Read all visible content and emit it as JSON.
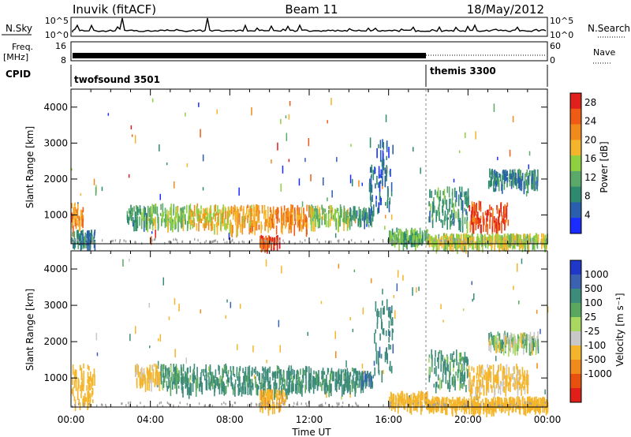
{
  "header": {
    "station": "Inuvik (fitACF)",
    "beam": "Beam 11",
    "date": "18/May/2012"
  },
  "strips": {
    "nsky": {
      "label": "N.Sky",
      "ticks": [
        "10^5",
        "10^0"
      ],
      "right_label": "N.Search",
      "right_ticks": [
        "10^5",
        "10^0"
      ]
    },
    "freq": {
      "label_line1": "Freq.",
      "label_line2": "[MHz]",
      "ticks": [
        "16",
        "8"
      ],
      "right_label": "Nave",
      "right_ticks": [
        "60",
        "0"
      ]
    },
    "cpid": {
      "label": "CPID",
      "modes": [
        "twofsound 3501",
        "themis 3300"
      ]
    }
  },
  "time_axis": {
    "label": "Time UT",
    "ticks": [
      "00:00",
      "04:00",
      "08:00",
      "12:00",
      "16:00",
      "20:00",
      "00:00"
    ]
  },
  "colors": {
    "power_scale": [
      "#1a2cff",
      "#2a5fae",
      "#2e8a6e",
      "#5aa86a",
      "#8fd040",
      "#f5b52a",
      "#f08a1a",
      "#ef5a15",
      "#e0201a"
    ],
    "velocity_scale": [
      "#2038c8",
      "#3a62b0",
      "#3d8b7a",
      "#5aa860",
      "#a8d860",
      "#c8c8c8",
      "#f5b52a",
      "#f08a1a",
      "#e85010",
      "#e02018"
    ],
    "ground_scatter": "#a0a0a0"
  },
  "chart_data": [
    {
      "type": "heatmap",
      "name": "power",
      "ylabel": "Slant Range [km]",
      "xlabel": "",
      "yticks": [
        "1000",
        "2000",
        "3000",
        "4000"
      ],
      "ylim": [
        200,
        4500
      ],
      "xlim_hours": [
        0,
        24
      ],
      "colorbar": {
        "label": "Power [dB]",
        "ticks": [
          "4",
          "8",
          "12",
          "16",
          "20",
          "24",
          "28"
        ],
        "range": [
          0,
          30
        ]
      },
      "patches": [
        {
          "t0": 0.0,
          "t1": 0.6,
          "r0": 700,
          "r1": 1350,
          "value": 22
        },
        {
          "t0": 0.0,
          "t1": 1.2,
          "r0": 250,
          "r1": 600,
          "value": 8
        },
        {
          "t0": 2.8,
          "t1": 3.8,
          "r0": 850,
          "r1": 1300,
          "value": 10
        },
        {
          "t0": 3.8,
          "t1": 6.0,
          "r0": 800,
          "r1": 1350,
          "value": 14
        },
        {
          "t0": 6.0,
          "t1": 8.0,
          "r0": 750,
          "r1": 1300,
          "value": 18
        },
        {
          "t0": 8.0,
          "t1": 10.0,
          "r0": 700,
          "r1": 1300,
          "value": 20
        },
        {
          "t0": 10.0,
          "t1": 12.0,
          "r0": 700,
          "r1": 1300,
          "value": 22
        },
        {
          "t0": 12.0,
          "t1": 14.0,
          "r0": 800,
          "r1": 1300,
          "value": 14
        },
        {
          "t0": 14.0,
          "t1": 15.2,
          "r0": 900,
          "r1": 1250,
          "value": 9
        },
        {
          "t0": 9.5,
          "t1": 10.5,
          "r0": 250,
          "r1": 450,
          "value": 26
        },
        {
          "t0": 15.0,
          "t1": 16.2,
          "r0": 1200,
          "r1": 3200,
          "value": 6
        },
        {
          "t0": 16.0,
          "t1": 18.0,
          "r0": 300,
          "r1": 650,
          "value": 12
        },
        {
          "t0": 18.0,
          "t1": 20.0,
          "r0": 800,
          "r1": 1800,
          "value": 10
        },
        {
          "t0": 20.0,
          "t1": 22.0,
          "r0": 700,
          "r1": 1400,
          "value": 26
        },
        {
          "t0": 21.0,
          "t1": 23.5,
          "r0": 1900,
          "r1": 2300,
          "value": 8
        },
        {
          "t0": 18.0,
          "t1": 24.0,
          "r0": 250,
          "r1": 500,
          "value": 16
        }
      ]
    },
    {
      "type": "heatmap",
      "name": "velocity",
      "ylabel": "Slant Range [km]",
      "xlabel": "Time UT",
      "yticks": [
        "1000",
        "2000",
        "3000",
        "4000"
      ],
      "ylim": [
        200,
        4500
      ],
      "xlim_hours": [
        0,
        24
      ],
      "colorbar": {
        "label": "Velocity [m s⁻¹]",
        "ticks": [
          "1000",
          "500",
          "100",
          "25",
          "-25",
          "-100",
          "-500",
          "-1000"
        ]
      },
      "patches": [
        {
          "t0": 0.0,
          "t1": 1.2,
          "r0": 300,
          "r1": 1400,
          "value": -300
        },
        {
          "t0": 3.2,
          "t1": 4.5,
          "r0": 900,
          "r1": 1400,
          "value": -200
        },
        {
          "t0": 4.5,
          "t1": 8.0,
          "r0": 750,
          "r1": 1400,
          "value": 150
        },
        {
          "t0": 8.0,
          "t1": 12.0,
          "r0": 700,
          "r1": 1350,
          "value": 200
        },
        {
          "t0": 12.0,
          "t1": 14.5,
          "r0": 800,
          "r1": 1300,
          "value": 180
        },
        {
          "t0": 14.5,
          "t1": 15.2,
          "r0": 900,
          "r1": 1200,
          "value": 500
        },
        {
          "t0": 9.5,
          "t1": 10.8,
          "r0": 250,
          "r1": 700,
          "value": -400
        },
        {
          "t0": 15.2,
          "t1": 16.2,
          "r0": 1200,
          "r1": 3200,
          "value": 400
        },
        {
          "t0": 16.0,
          "t1": 18.0,
          "r0": 300,
          "r1": 650,
          "value": -250
        },
        {
          "t0": 18.0,
          "t1": 20.0,
          "r0": 800,
          "r1": 1800,
          "value": 120
        },
        {
          "t0": 20.0,
          "t1": 23.0,
          "r0": 700,
          "r1": 1400,
          "value": -150
        },
        {
          "t0": 21.0,
          "t1": 23.5,
          "r0": 1900,
          "r1": 2300,
          "value": 0
        },
        {
          "t0": 18.0,
          "t1": 24.0,
          "r0": 250,
          "r1": 500,
          "value": -300
        }
      ]
    }
  ]
}
